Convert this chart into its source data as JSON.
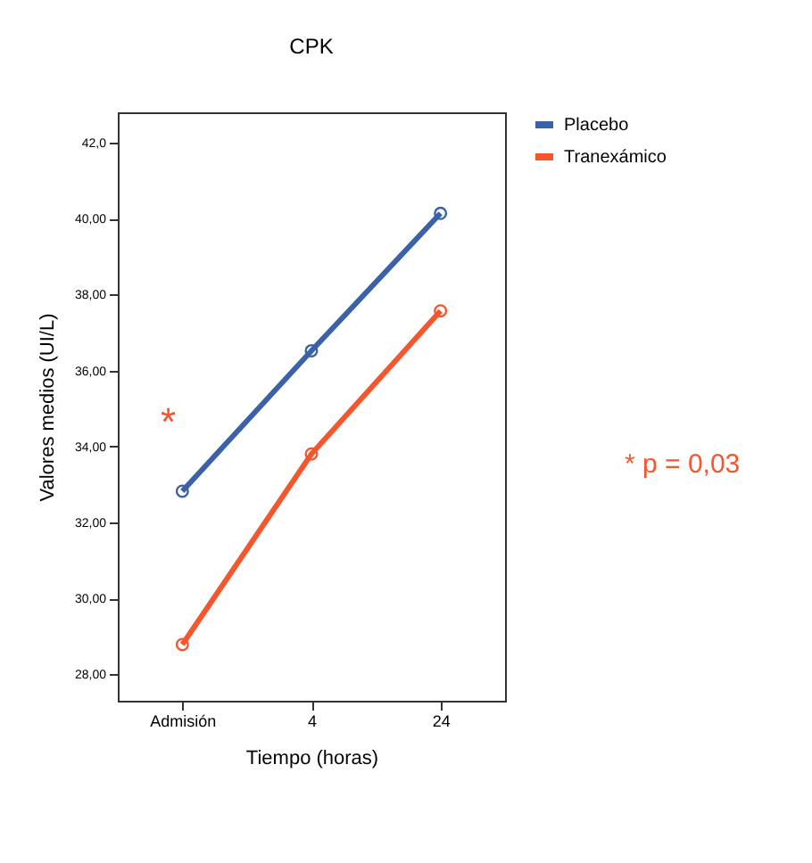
{
  "chart_data": {
    "type": "line",
    "title": "CPK",
    "xlabel": "Tiempo (horas)",
    "ylabel": "Valores medios (UI/L)",
    "categories": [
      "Admisión",
      "4",
      "24"
    ],
    "series": [
      {
        "name": "Placebo",
        "color": "#3a62a8",
        "values": [
          32.82,
          36.52,
          40.14
        ]
      },
      {
        "name": "Tranexámico",
        "color": "#f4562e",
        "values": [
          28.78,
          33.8,
          37.57
        ]
      }
    ],
    "ylim": [
      27.3,
      42.8
    ],
    "yticks": [
      {
        "value": 28,
        "label": "28,00"
      },
      {
        "value": 30,
        "label": "30,00"
      },
      {
        "value": 32,
        "label": "32,00"
      },
      {
        "value": 34,
        "label": "34,00"
      },
      {
        "value": 36,
        "label": "36,00"
      },
      {
        "value": 38,
        "label": "38,00"
      },
      {
        "value": 40,
        "label": "40,00"
      },
      {
        "value": 42,
        "label": "42,0"
      }
    ],
    "annotations": [
      "*",
      "* p = 0,03"
    ],
    "grid": false,
    "legend": "top right",
    "marker": "circle",
    "line_style": "solid"
  }
}
